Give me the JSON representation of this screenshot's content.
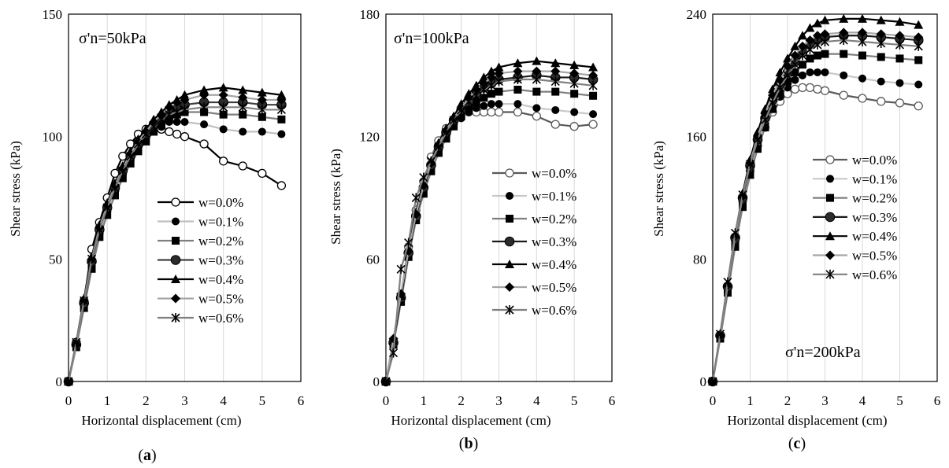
{
  "chart_data": [
    {
      "type": "scatter",
      "panel_label": "(a)",
      "annotation": "σ'n=50kPa",
      "xlabel": "Horizontal displacement (cm)",
      "ylabel": "Shear stress (kPa)",
      "xlim": [
        0,
        6
      ],
      "ylim": [
        0,
        150
      ],
      "xticks": [
        0,
        1,
        2,
        3,
        4,
        5,
        6
      ],
      "yticks": [
        0,
        50,
        100,
        150
      ],
      "grid": "vertical",
      "legend_position": "bottom-right",
      "series": [
        {
          "name": "w=0.0%",
          "x": [
            0,
            0.2,
            0.4,
            0.6,
            0.8,
            1.0,
            1.2,
            1.4,
            1.6,
            1.8,
            2.0,
            2.2,
            2.4,
            2.6,
            2.8,
            3.0,
            3.5,
            4.0,
            4.5,
            5.0,
            5.5
          ],
          "y": [
            0,
            16,
            33,
            54,
            65,
            75,
            85,
            92,
            97,
            101,
            103,
            104,
            103,
            102,
            101,
            100,
            97,
            90,
            88,
            85,
            80
          ]
        },
        {
          "name": "w=0.1%",
          "x": [
            0,
            0.2,
            0.4,
            0.6,
            0.8,
            1.0,
            1.2,
            1.4,
            1.6,
            1.8,
            2.0,
            2.2,
            2.4,
            2.6,
            2.8,
            3.0,
            3.5,
            4.0,
            4.5,
            5.0,
            5.5
          ],
          "y": [
            0,
            15,
            31,
            47,
            60,
            70,
            78,
            85,
            90,
            95,
            99,
            102,
            104,
            106,
            106,
            106,
            105,
            103,
            102,
            102,
            101
          ]
        },
        {
          "name": "w=0.2%",
          "x": [
            0,
            0.2,
            0.4,
            0.6,
            0.8,
            1.0,
            1.2,
            1.4,
            1.6,
            1.8,
            2.0,
            2.2,
            2.4,
            2.6,
            2.8,
            3.0,
            3.5,
            4.0,
            4.5,
            5.0,
            5.5
          ],
          "y": [
            0,
            14,
            30,
            46,
            59,
            68,
            76,
            83,
            89,
            94,
            98,
            102,
            105,
            107,
            109,
            110,
            110,
            109,
            109,
            108,
            107
          ]
        },
        {
          "name": "w=0.3%",
          "x": [
            0,
            0.2,
            0.4,
            0.6,
            0.8,
            1.0,
            1.2,
            1.4,
            1.6,
            1.8,
            2.0,
            2.2,
            2.4,
            2.6,
            2.8,
            3.0,
            3.5,
            4.0,
            4.5,
            5.0,
            5.5
          ],
          "y": [
            0,
            15,
            32,
            49,
            62,
            71,
            79,
            86,
            92,
            97,
            101,
            105,
            108,
            110,
            112,
            113,
            114,
            114,
            114,
            113,
            113
          ]
        },
        {
          "name": "w=0.4%",
          "x": [
            0,
            0.2,
            0.4,
            0.6,
            0.8,
            1.0,
            1.2,
            1.4,
            1.6,
            1.8,
            2.0,
            2.2,
            2.4,
            2.6,
            2.8,
            3.0,
            3.5,
            4.0,
            4.5,
            5.0,
            5.5
          ],
          "y": [
            0,
            16,
            34,
            51,
            64,
            73,
            81,
            88,
            94,
            99,
            103,
            107,
            110,
            113,
            115,
            117,
            119,
            120,
            119,
            118,
            117
          ]
        },
        {
          "name": "w=0.5%",
          "x": [
            0,
            0.2,
            0.4,
            0.6,
            0.8,
            1.0,
            1.2,
            1.4,
            1.6,
            1.8,
            2.0,
            2.2,
            2.4,
            2.6,
            2.8,
            3.0,
            3.5,
            4.0,
            4.5,
            5.0,
            5.5
          ],
          "y": [
            0,
            15,
            33,
            50,
            63,
            72,
            80,
            87,
            93,
            98,
            102,
            106,
            109,
            112,
            114,
            115,
            117,
            117,
            116,
            115,
            115
          ]
        },
        {
          "name": "w=0.6%",
          "x": [
            0,
            0.2,
            0.4,
            0.6,
            0.8,
            1.0,
            1.2,
            1.4,
            1.6,
            1.8,
            2.0,
            2.2,
            2.4,
            2.6,
            2.8,
            3.0,
            3.5,
            4.0,
            4.5,
            5.0,
            5.5
          ],
          "y": [
            0,
            16,
            33,
            50,
            62,
            71,
            79,
            86,
            92,
            97,
            101,
            104,
            107,
            109,
            110,
            111,
            112,
            112,
            112,
            111,
            111
          ]
        }
      ]
    },
    {
      "type": "scatter",
      "panel_label": "(b)",
      "annotation": "σ'n=100kPa",
      "xlabel": "Horizontal displacement (cm)",
      "ylabel": "Shear stress (kPa)",
      "xlim": [
        0,
        6
      ],
      "ylim": [
        0,
        180
      ],
      "xticks": [
        0,
        1,
        2,
        3,
        4,
        5,
        6
      ],
      "yticks": [
        0,
        60,
        120,
        180
      ],
      "grid": "vertical",
      "legend_position": "right",
      "series": [
        {
          "name": "w=0.0%",
          "x": [
            0,
            0.2,
            0.4,
            0.6,
            0.8,
            1.0,
            1.2,
            1.4,
            1.6,
            1.8,
            2.0,
            2.2,
            2.4,
            2.6,
            2.8,
            3.0,
            3.5,
            4.0,
            4.5,
            5.0,
            5.5
          ],
          "y": [
            0,
            20,
            42,
            66,
            84,
            98,
            110,
            118,
            124,
            128,
            131,
            132,
            132,
            132,
            132,
            132,
            132,
            130,
            126,
            125,
            126
          ]
        },
        {
          "name": "w=0.1%",
          "x": [
            0,
            0.2,
            0.4,
            0.6,
            0.8,
            1.0,
            1.2,
            1.4,
            1.6,
            1.8,
            2.0,
            2.2,
            2.4,
            2.6,
            2.8,
            3.0,
            3.5,
            4.0,
            4.5,
            5.0,
            5.5
          ],
          "y": [
            0,
            19,
            40,
            62,
            80,
            94,
            105,
            114,
            120,
            125,
            129,
            132,
            134,
            135,
            136,
            136,
            136,
            134,
            133,
            132,
            131
          ]
        },
        {
          "name": "w=0.2%",
          "x": [
            0,
            0.2,
            0.4,
            0.6,
            0.8,
            1.0,
            1.2,
            1.4,
            1.6,
            1.8,
            2.0,
            2.2,
            2.4,
            2.6,
            2.8,
            3.0,
            3.5,
            4.0,
            4.5,
            5.0,
            5.5
          ],
          "y": [
            0,
            18,
            39,
            61,
            79,
            92,
            103,
            112,
            119,
            125,
            130,
            134,
            137,
            139,
            141,
            142,
            143,
            142,
            142,
            141,
            140
          ]
        },
        {
          "name": "w=0.3%",
          "x": [
            0,
            0.2,
            0.4,
            0.6,
            0.8,
            1.0,
            1.2,
            1.4,
            1.6,
            1.8,
            2.0,
            2.2,
            2.4,
            2.6,
            2.8,
            3.0,
            3.5,
            4.0,
            4.5,
            5.0,
            5.5
          ],
          "y": [
            0,
            19,
            41,
            63,
            81,
            95,
            106,
            115,
            122,
            128,
            133,
            137,
            141,
            144,
            146,
            148,
            149,
            150,
            149,
            149,
            148
          ]
        },
        {
          "name": "w=0.4%",
          "x": [
            0,
            0.2,
            0.4,
            0.6,
            0.8,
            1.0,
            1.2,
            1.4,
            1.6,
            1.8,
            2.0,
            2.2,
            2.4,
            2.6,
            2.8,
            3.0,
            3.5,
            4.0,
            4.5,
            5.0,
            5.5
          ],
          "y": [
            0,
            20,
            42,
            65,
            83,
            97,
            108,
            117,
            124,
            130,
            136,
            141,
            145,
            149,
            152,
            154,
            156,
            157,
            156,
            155,
            154
          ]
        },
        {
          "name": "w=0.5%",
          "x": [
            0,
            0.2,
            0.4,
            0.6,
            0.8,
            1.0,
            1.2,
            1.4,
            1.6,
            1.8,
            2.0,
            2.2,
            2.4,
            2.6,
            2.8,
            3.0,
            3.5,
            4.0,
            4.5,
            5.0,
            5.5
          ],
          "y": [
            0,
            21,
            43,
            64,
            82,
            96,
            107,
            116,
            123,
            129,
            134,
            139,
            143,
            146,
            149,
            151,
            152,
            152,
            152,
            151,
            150
          ]
        },
        {
          "name": "w=0.6%",
          "x": [
            0,
            0.2,
            0.4,
            0.6,
            0.8,
            1.0,
            1.2,
            1.4,
            1.6,
            1.8,
            2.0,
            2.2,
            2.4,
            2.6,
            2.8,
            3.0,
            3.5,
            4.0,
            4.5,
            5.0,
            5.5
          ],
          "y": [
            0,
            14,
            55,
            68,
            90,
            100,
            108,
            115,
            122,
            128,
            133,
            137,
            140,
            143,
            145,
            147,
            148,
            148,
            147,
            146,
            145
          ]
        }
      ]
    },
    {
      "type": "scatter",
      "panel_label": "(c)",
      "annotation": "σ'n=200kPa",
      "xlabel": "Horizontal displacement (cm)",
      "ylabel": "Shear stress (kPa)",
      "xlim": [
        0,
        6
      ],
      "ylim": [
        0,
        240
      ],
      "xticks": [
        0,
        1,
        2,
        3,
        4,
        5,
        6
      ],
      "yticks": [
        0,
        80,
        160,
        240
      ],
      "grid": "vertical",
      "legend_position": "right",
      "series": [
        {
          "name": "w=0.0%",
          "x": [
            0,
            0.2,
            0.4,
            0.6,
            0.8,
            1.0,
            1.2,
            1.4,
            1.6,
            1.8,
            2.0,
            2.2,
            2.4,
            2.6,
            2.8,
            3.0,
            3.5,
            4.0,
            4.5,
            5.0,
            5.5
          ],
          "y": [
            0,
            30,
            62,
            92,
            118,
            138,
            154,
            166,
            176,
            183,
            188,
            191,
            192,
            192,
            191,
            190,
            187,
            185,
            183,
            182,
            180
          ]
        },
        {
          "name": "w=0.1%",
          "x": [
            0,
            0.2,
            0.4,
            0.6,
            0.8,
            1.0,
            1.2,
            1.4,
            1.6,
            1.8,
            2.0,
            2.2,
            2.4,
            2.6,
            2.8,
            3.0,
            3.5,
            4.0,
            4.5,
            5.0,
            5.5
          ],
          "y": [
            0,
            29,
            60,
            90,
            116,
            137,
            154,
            167,
            178,
            186,
            192,
            197,
            200,
            202,
            202,
            202,
            200,
            198,
            196,
            195,
            194
          ]
        },
        {
          "name": "w=0.2%",
          "x": [
            0,
            0.2,
            0.4,
            0.6,
            0.8,
            1.0,
            1.2,
            1.4,
            1.6,
            1.8,
            2.0,
            2.2,
            2.4,
            2.6,
            2.8,
            3.0,
            3.5,
            4.0,
            4.5,
            5.0,
            5.5
          ],
          "y": [
            0,
            28,
            58,
            88,
            114,
            135,
            152,
            166,
            178,
            188,
            196,
            202,
            207,
            211,
            213,
            214,
            214,
            213,
            212,
            211,
            210
          ]
        },
        {
          "name": "w=0.3%",
          "x": [
            0,
            0.2,
            0.4,
            0.6,
            0.8,
            1.0,
            1.2,
            1.4,
            1.6,
            1.8,
            2.0,
            2.2,
            2.4,
            2.6,
            2.8,
            3.0,
            3.5,
            4.0,
            4.5,
            5.0,
            5.5
          ],
          "y": [
            0,
            30,
            62,
            94,
            120,
            141,
            158,
            172,
            184,
            194,
            202,
            209,
            215,
            220,
            223,
            225,
            226,
            226,
            225,
            224,
            223
          ]
        },
        {
          "name": "w=0.4%",
          "x": [
            0,
            0.2,
            0.4,
            0.6,
            0.8,
            1.0,
            1.2,
            1.4,
            1.6,
            1.8,
            2.0,
            2.2,
            2.4,
            2.6,
            2.8,
            3.0,
            3.5,
            4.0,
            4.5,
            5.0,
            5.5
          ],
          "y": [
            0,
            31,
            64,
            96,
            123,
            145,
            163,
            178,
            191,
            202,
            211,
            219,
            226,
            231,
            234,
            236,
            237,
            237,
            236,
            235,
            233
          ]
        },
        {
          "name": "w=0.5%",
          "x": [
            0,
            0.2,
            0.4,
            0.6,
            0.8,
            1.0,
            1.2,
            1.4,
            1.6,
            1.8,
            2.0,
            2.2,
            2.4,
            2.6,
            2.8,
            3.0,
            3.5,
            4.0,
            4.5,
            5.0,
            5.5
          ],
          "y": [
            0,
            30,
            63,
            95,
            121,
            143,
            160,
            175,
            187,
            197,
            206,
            213,
            219,
            223,
            226,
            227,
            228,
            228,
            227,
            226,
            225
          ]
        },
        {
          "name": "w=0.6%",
          "x": [
            0,
            0.2,
            0.4,
            0.6,
            0.8,
            1.0,
            1.2,
            1.4,
            1.6,
            1.8,
            2.0,
            2.2,
            2.4,
            2.6,
            2.8,
            3.0,
            3.5,
            4.0,
            4.5,
            5.0,
            5.5
          ],
          "y": [
            0,
            31,
            65,
            97,
            122,
            142,
            158,
            171,
            182,
            192,
            200,
            207,
            213,
            217,
            220,
            222,
            223,
            222,
            221,
            220,
            219
          ]
        }
      ]
    }
  ],
  "series_styles": [
    {
      "color": "#595959",
      "marker": "circle-open"
    },
    {
      "color": "#c8c8c8",
      "marker": "circle-filled"
    },
    {
      "color": "#7f7f7f",
      "marker": "square-filled"
    },
    {
      "color": "#1a1a1a",
      "marker": "circle-filled-large"
    },
    {
      "color": "#000000",
      "marker": "triangle-filled"
    },
    {
      "color": "#a6a6a6",
      "marker": "diamond-filled"
    },
    {
      "color": "#808080",
      "marker": "star"
    }
  ],
  "panel_a_series_styles": [
    {
      "color": "#000000",
      "marker": "circle-open"
    },
    {
      "color": "#bfbfbf",
      "marker": "circle-filled"
    },
    {
      "color": "#7f7f7f",
      "marker": "square-filled"
    },
    {
      "color": "#404040",
      "marker": "circle-filled-large"
    },
    {
      "color": "#000000",
      "marker": "triangle-filled"
    },
    {
      "color": "#a6a6a6",
      "marker": "diamond-filled"
    },
    {
      "color": "#808080",
      "marker": "star"
    }
  ]
}
